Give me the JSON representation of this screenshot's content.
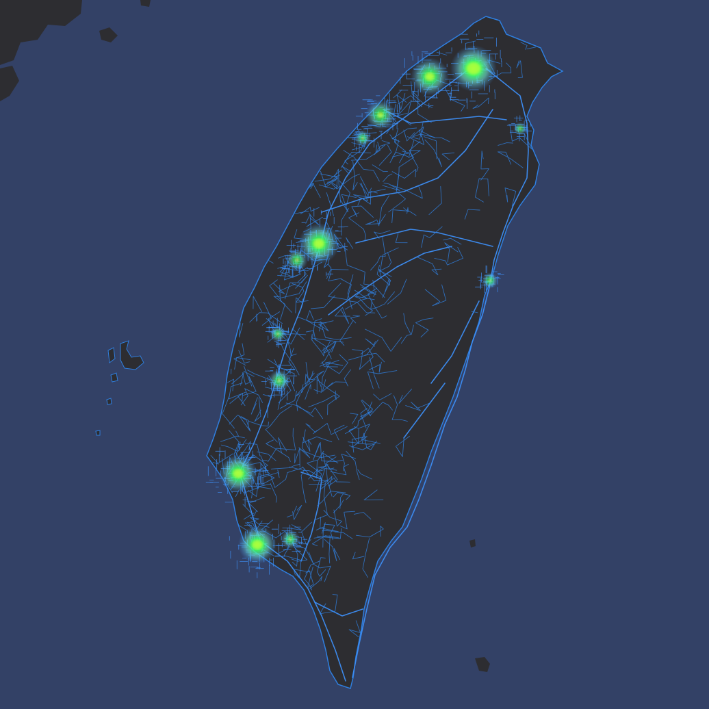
{
  "map": {
    "colors": {
      "sea": "#334166",
      "land": "#2d2d31",
      "land_border": "#3a3a40",
      "road": "#2f7fe0",
      "road_bright": "#3d8ef5",
      "hotspot_core": "#a8ff3a",
      "hotspot_mid": "#3dff6a",
      "hotspot_halo": "#6fe3d4"
    },
    "hotspots": [
      {
        "id": "taipei",
        "intensity": 1.0
      },
      {
        "id": "taoyuan",
        "intensity": 0.75
      },
      {
        "id": "hsinchu",
        "intensity": 0.55
      },
      {
        "id": "keelung-coast",
        "intensity": 0.35
      },
      {
        "id": "taichung",
        "intensity": 0.85
      },
      {
        "id": "changhua",
        "intensity": 0.45
      },
      {
        "id": "yunlin",
        "intensity": 0.35
      },
      {
        "id": "chiayi",
        "intensity": 0.45
      },
      {
        "id": "tainan",
        "intensity": 0.85
      },
      {
        "id": "kaohsiung",
        "intensity": 0.9
      },
      {
        "id": "pingtung",
        "intensity": 0.4
      },
      {
        "id": "hualien",
        "intensity": 0.35
      },
      {
        "id": "yilan",
        "intensity": 0.25
      }
    ]
  }
}
